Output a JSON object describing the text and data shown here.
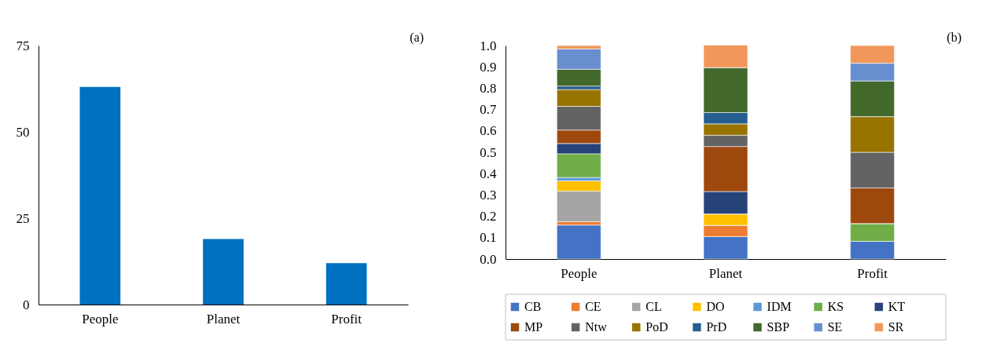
{
  "chart_data": [
    {
      "type": "bar",
      "categories": [
        "People",
        "Planet",
        "Profit"
      ],
      "values": [
        63,
        19,
        12
      ],
      "color": "#0070c0",
      "ylim": [
        0,
        75
      ],
      "yticks": [
        0,
        25,
        50,
        75
      ],
      "grid": false,
      "annotations": [
        "(a)"
      ]
    },
    {
      "type": "bar",
      "stacked": true,
      "categories": [
        "People",
        "Planet",
        "Profit"
      ],
      "ylim": [
        0,
        1
      ],
      "yticks": [
        {
          "value": 0,
          "label": "0.0"
        },
        0.1,
        0.2,
        0.3,
        0.4,
        0.5,
        0.6,
        0.7,
        0.8,
        0.9,
        {
          "value": 1,
          "label": "1.0"
        }
      ],
      "grid": false,
      "legend": "bottom",
      "annotations": [
        "(b)"
      ],
      "series": [
        {
          "name": "CB",
          "color": "#4472c4",
          "values": [
            0.159,
            0.105,
            0.083
          ]
        },
        {
          "name": "CE",
          "color": "#ed7d31",
          "values": [
            0.016,
            0.053,
            0
          ]
        },
        {
          "name": "CL",
          "color": "#a5a5a5",
          "values": [
            0.143,
            0,
            0
          ]
        },
        {
          "name": "DO",
          "color": "#ffc000",
          "values": [
            0.048,
            0.053,
            0
          ]
        },
        {
          "name": "IDM",
          "color": "#5b9bd5",
          "values": [
            0.016,
            0,
            0
          ]
        },
        {
          "name": "KS",
          "color": "#70ad47",
          "values": [
            0.111,
            0,
            0.083
          ]
        },
        {
          "name": "KT",
          "color": "#264478",
          "values": [
            0.048,
            0.105,
            0
          ]
        },
        {
          "name": "MP",
          "color": "#9e480e",
          "values": [
            0.063,
            0.211,
            0.167
          ]
        },
        {
          "name": "Ntw",
          "color": "#636363",
          "values": [
            0.111,
            0.053,
            0.167
          ]
        },
        {
          "name": "PoD",
          "color": "#997300",
          "values": [
            0.079,
            0.053,
            0.167
          ]
        },
        {
          "name": "PrD",
          "color": "#255e91",
          "values": [
            0.016,
            0.053,
            0
          ]
        },
        {
          "name": "SBP",
          "color": "#43682b",
          "values": [
            0.079,
            0.211,
            0.167
          ]
        },
        {
          "name": "SE",
          "color": "#698ed0",
          "values": [
            0.095,
            0,
            0.083
          ]
        },
        {
          "name": "SR",
          "color": "#f1975a",
          "values": [
            0.016,
            0.105,
            0.083
          ]
        }
      ]
    }
  ]
}
